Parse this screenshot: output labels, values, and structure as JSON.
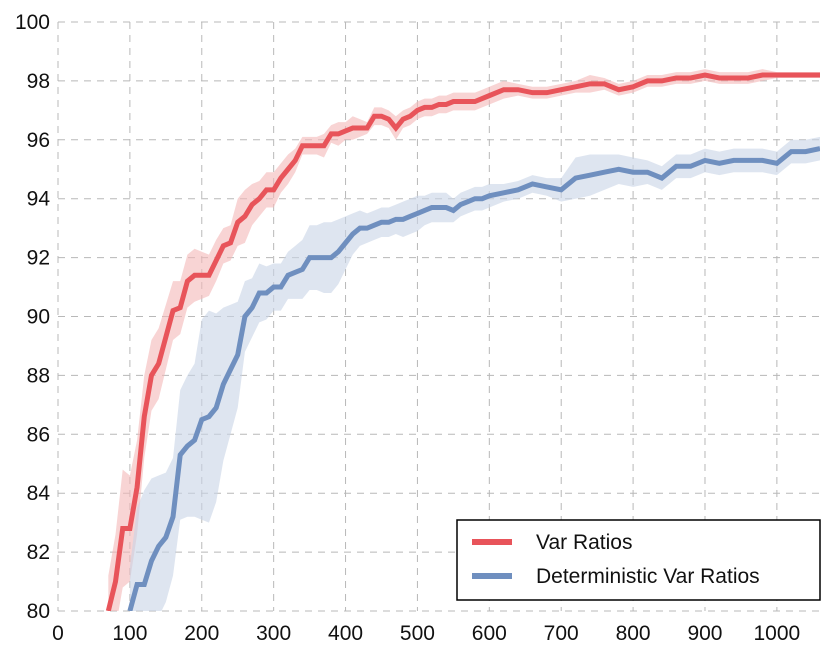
{
  "chart_data": {
    "type": "line",
    "title": "",
    "xlabel": "",
    "ylabel": "",
    "xlim": [
      0,
      1060
    ],
    "ylim": [
      80,
      100
    ],
    "x_ticks": [
      0,
      100,
      200,
      300,
      400,
      500,
      600,
      700,
      800,
      900,
      1000
    ],
    "y_ticks": [
      80,
      82,
      84,
      86,
      88,
      90,
      92,
      94,
      96,
      98,
      100
    ],
    "grid": true,
    "legend_position": "bottom-right",
    "series": [
      {
        "name": "Var Ratios",
        "color": "#e8545a",
        "band_color": "#f4b8b8",
        "x": [
          70,
          80,
          90,
          100,
          110,
          120,
          130,
          140,
          150,
          160,
          170,
          180,
          190,
          200,
          210,
          220,
          230,
          240,
          250,
          260,
          270,
          280,
          290,
          300,
          310,
          320,
          330,
          340,
          350,
          360,
          370,
          380,
          390,
          400,
          410,
          420,
          430,
          440,
          450,
          460,
          470,
          480,
          490,
          500,
          510,
          520,
          530,
          540,
          550,
          560,
          570,
          580,
          590,
          600,
          620,
          640,
          660,
          680,
          700,
          720,
          740,
          760,
          780,
          800,
          820,
          840,
          860,
          880,
          900,
          920,
          940,
          960,
          980,
          1000,
          1020,
          1040,
          1060
        ],
        "y": [
          80.0,
          81.0,
          82.8,
          82.8,
          84.2,
          86.6,
          88.0,
          88.4,
          89.3,
          90.2,
          90.3,
          91.2,
          91.4,
          91.4,
          91.4,
          91.9,
          92.4,
          92.5,
          93.2,
          93.4,
          93.8,
          94.0,
          94.3,
          94.3,
          94.7,
          95.0,
          95.3,
          95.8,
          95.8,
          95.8,
          95.8,
          96.2,
          96.2,
          96.3,
          96.4,
          96.4,
          96.4,
          96.8,
          96.8,
          96.7,
          96.4,
          96.7,
          96.8,
          97.0,
          97.1,
          97.1,
          97.2,
          97.2,
          97.3,
          97.3,
          97.3,
          97.3,
          97.4,
          97.5,
          97.7,
          97.7,
          97.6,
          97.6,
          97.7,
          97.8,
          97.9,
          97.9,
          97.7,
          97.8,
          98.0,
          98.0,
          98.1,
          98.1,
          98.2,
          98.1,
          98.1,
          98.1,
          98.2,
          98.2,
          98.2,
          98.2,
          98.2
        ],
        "band": [
          1.2,
          1.6,
          2.0,
          1.8,
          1.6,
          1.4,
          1.2,
          1.2,
          1.1,
          1.0,
          0.9,
          0.9,
          0.9,
          0.8,
          0.7,
          0.7,
          0.6,
          0.6,
          0.8,
          0.9,
          0.7,
          0.6,
          0.6,
          0.6,
          0.5,
          0.5,
          0.4,
          0.3,
          0.3,
          0.3,
          0.4,
          0.3,
          0.4,
          0.3,
          0.4,
          0.3,
          0.2,
          0.3,
          0.3,
          0.3,
          0.4,
          0.3,
          0.3,
          0.3,
          0.3,
          0.3,
          0.3,
          0.3,
          0.3,
          0.3,
          0.3,
          0.3,
          0.3,
          0.3,
          0.3,
          0.2,
          0.2,
          0.2,
          0.2,
          0.2,
          0.3,
          0.2,
          0.2,
          0.2,
          0.2,
          0.2,
          0.2,
          0.2,
          0.2,
          0.2,
          0.2,
          0.2,
          0.2,
          0.1,
          0.1,
          0.1,
          0.1
        ]
      },
      {
        "name": "Deterministic Var Ratios",
        "color": "#6f8fbf",
        "band_color": "#c8d3e6",
        "x": [
          100,
          110,
          120,
          130,
          140,
          150,
          160,
          170,
          180,
          190,
          200,
          210,
          220,
          230,
          240,
          250,
          260,
          270,
          280,
          290,
          300,
          310,
          320,
          330,
          340,
          350,
          360,
          370,
          380,
          390,
          400,
          410,
          420,
          430,
          440,
          450,
          460,
          470,
          480,
          490,
          500,
          510,
          520,
          530,
          540,
          550,
          560,
          570,
          580,
          590,
          600,
          620,
          640,
          660,
          680,
          700,
          720,
          740,
          760,
          780,
          800,
          820,
          840,
          860,
          880,
          900,
          920,
          940,
          960,
          980,
          1000,
          1020,
          1040,
          1060
        ],
        "y": [
          80.0,
          80.9,
          80.9,
          81.7,
          82.2,
          82.5,
          83.2,
          85.3,
          85.6,
          85.8,
          86.5,
          86.6,
          86.9,
          87.7,
          88.2,
          88.7,
          90.0,
          90.3,
          90.8,
          90.8,
          91.0,
          91.0,
          91.4,
          91.5,
          91.6,
          92.0,
          92.0,
          92.0,
          92.0,
          92.2,
          92.5,
          92.8,
          93.0,
          93.0,
          93.1,
          93.2,
          93.2,
          93.3,
          93.3,
          93.4,
          93.5,
          93.6,
          93.7,
          93.7,
          93.7,
          93.6,
          93.8,
          93.9,
          94.0,
          94.0,
          94.1,
          94.2,
          94.3,
          94.5,
          94.4,
          94.3,
          94.7,
          94.8,
          94.9,
          95.0,
          94.9,
          94.9,
          94.7,
          95.1,
          95.1,
          95.3,
          95.2,
          95.3,
          95.3,
          95.3,
          95.2,
          95.6,
          95.6,
          95.7
        ],
        "band": [
          1.5,
          2.6,
          3.2,
          2.8,
          2.4,
          2.2,
          2.0,
          2.2,
          2.4,
          2.6,
          3.4,
          3.6,
          3.2,
          2.6,
          2.2,
          1.8,
          1.2,
          1.0,
          1.0,
          0.9,
          0.8,
          0.8,
          0.8,
          0.9,
          1.0,
          1.1,
          1.1,
          1.2,
          1.2,
          1.1,
          0.9,
          0.7,
          0.6,
          0.5,
          0.5,
          0.5,
          0.5,
          0.5,
          0.6,
          0.6,
          0.6,
          0.5,
          0.5,
          0.5,
          0.5,
          0.4,
          0.4,
          0.4,
          0.4,
          0.4,
          0.4,
          0.3,
          0.3,
          0.3,
          0.3,
          0.4,
          0.7,
          0.7,
          0.6,
          0.5,
          0.5,
          0.4,
          0.4,
          0.4,
          0.4,
          0.4,
          0.4,
          0.4,
          0.4,
          0.4,
          0.4,
          0.4,
          0.4,
          0.4
        ]
      }
    ]
  }
}
